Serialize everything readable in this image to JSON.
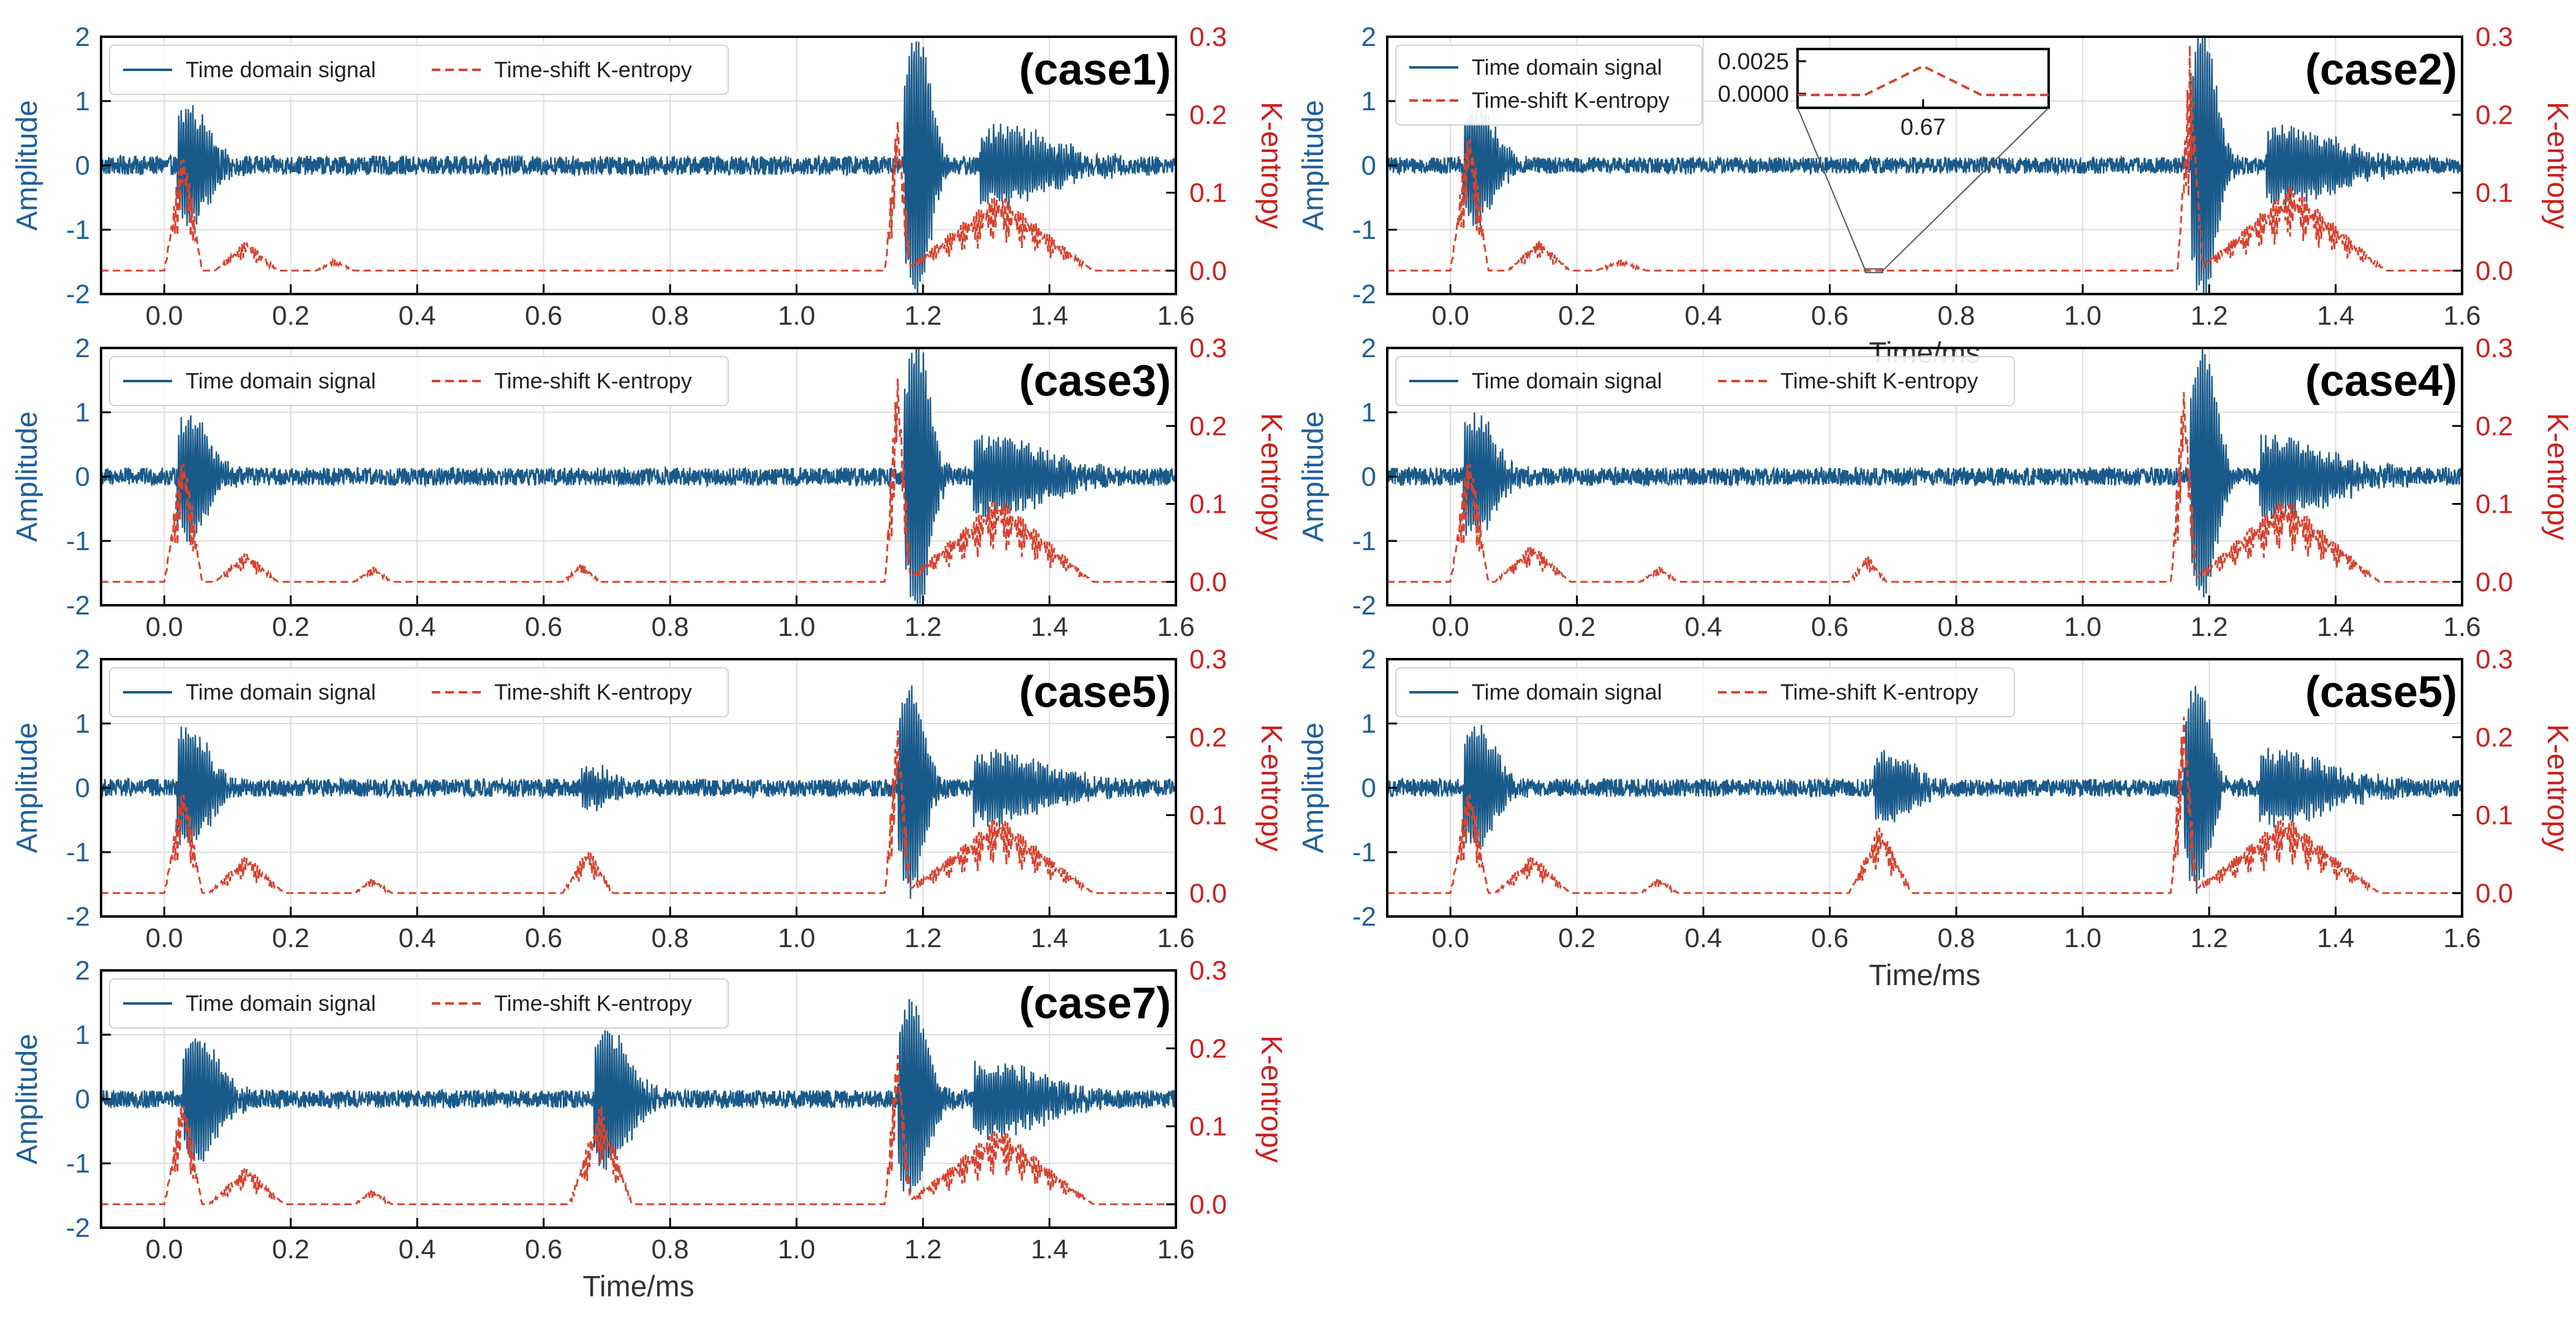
{
  "colors": {
    "signal": "#1a5a8a",
    "entropy": "#d9432f",
    "left_axis": "#1f5f99",
    "right_axis": "#cc1f1f",
    "grid": "#dddddd",
    "frame": "#000000"
  },
  "axis_labels": {
    "x": "Time/ms",
    "y_left": "Amplitude",
    "y_right": "K-entropy"
  },
  "legend": {
    "signal": "Time domain signal",
    "entropy": "Time-shift K-entropy"
  },
  "inset": {
    "y_ticks": [
      "0.0025",
      "0.0000"
    ],
    "x_tick": "0.67"
  },
  "chart_data": [
    {
      "id": "case1",
      "title": "(case1)",
      "type": "line",
      "xlim": [
        -0.1,
        1.6
      ],
      "ylim_left": [
        -2,
        2
      ],
      "ylim_right": [
        -0.03,
        0.3
      ],
      "x_ticks": [
        "0.0",
        "0.2",
        "0.4",
        "0.6",
        "0.8",
        "1.0",
        "1.2",
        "1.4",
        "1.6"
      ],
      "y_left_ticks": [
        "2",
        "1",
        "0",
        "-1",
        "-2"
      ],
      "y_right_ticks": [
        "0.3",
        "0.2",
        "0.1",
        "0.0"
      ],
      "noise": 0.15,
      "bursts": [
        {
          "t": 0.04,
          "amp": 0.85,
          "w": 0.03
        },
        {
          "t": 1.19,
          "amp": 2.1,
          "w": 0.02
        },
        {
          "t": 1.31,
          "amp": 0.55,
          "w": 0.09
        }
      ],
      "entropy_peaks": [
        {
          "t": 0.03,
          "h": 0.17,
          "w": 0.03
        },
        {
          "t": 0.13,
          "h": 0.04,
          "w": 0.05
        },
        {
          "t": 0.27,
          "h": 0.015,
          "w": 0.03
        },
        {
          "t": 1.16,
          "h": 0.22,
          "w": 0.02
        },
        {
          "t": 1.32,
          "h": 0.1,
          "w": 0.15
        }
      ],
      "inset": false,
      "xlabel": false
    },
    {
      "id": "case2",
      "title": "(case2)",
      "type": "line",
      "xlim": [
        -0.1,
        1.6
      ],
      "ylim_left": [
        -2,
        2
      ],
      "ylim_right": [
        -0.03,
        0.3
      ],
      "x_ticks": [
        "0.0",
        "0.2",
        "0.4",
        "0.6",
        "0.8",
        "1.0",
        "1.2",
        "1.4",
        "1.6"
      ],
      "y_left_ticks": [
        "2",
        "1",
        "0",
        "-1",
        "-2"
      ],
      "y_right_ticks": [
        "0.3",
        "0.2",
        "0.1",
        "0.0"
      ],
      "noise": 0.13,
      "bursts": [
        {
          "t": 0.04,
          "amp": 0.85,
          "w": 0.03
        },
        {
          "t": 1.19,
          "amp": 2.1,
          "w": 0.02
        },
        {
          "t": 1.31,
          "amp": 0.55,
          "w": 0.09
        }
      ],
      "entropy_peaks": [
        {
          "t": 0.03,
          "h": 0.2,
          "w": 0.03
        },
        {
          "t": 0.14,
          "h": 0.04,
          "w": 0.05
        },
        {
          "t": 0.27,
          "h": 0.015,
          "w": 0.04
        },
        {
          "t": 1.17,
          "h": 0.3,
          "w": 0.02
        },
        {
          "t": 1.33,
          "h": 0.11,
          "w": 0.15
        }
      ],
      "inset": true,
      "xlabel": true
    },
    {
      "id": "case3",
      "title": "(case3)",
      "type": "line",
      "xlim": [
        -0.1,
        1.6
      ],
      "ylim_left": [
        -2,
        2
      ],
      "ylim_right": [
        -0.03,
        0.3
      ],
      "x_ticks": [
        "0.0",
        "0.2",
        "0.4",
        "0.6",
        "0.8",
        "1.0",
        "1.2",
        "1.4",
        "1.6"
      ],
      "y_left_ticks": [
        "2",
        "1",
        "0",
        "-1",
        "-2"
      ],
      "y_right_ticks": [
        "0.3",
        "0.2",
        "0.1",
        "0.0"
      ],
      "noise": 0.14,
      "bursts": [
        {
          "t": 0.04,
          "amp": 0.9,
          "w": 0.03
        },
        {
          "t": 1.19,
          "amp": 2.1,
          "w": 0.02
        },
        {
          "t": 1.3,
          "amp": 0.55,
          "w": 0.09
        }
      ],
      "entropy_peaks": [
        {
          "t": 0.03,
          "h": 0.18,
          "w": 0.03
        },
        {
          "t": 0.13,
          "h": 0.04,
          "w": 0.05
        },
        {
          "t": 0.33,
          "h": 0.02,
          "w": 0.03
        },
        {
          "t": 0.66,
          "h": 0.025,
          "w": 0.03
        },
        {
          "t": 1.16,
          "h": 0.3,
          "w": 0.02
        },
        {
          "t": 1.32,
          "h": 0.11,
          "w": 0.15
        }
      ],
      "inset": false,
      "xlabel": false
    },
    {
      "id": "case4",
      "title": "(case4)",
      "type": "line",
      "xlim": [
        -0.1,
        1.6
      ],
      "ylim_left": [
        -2,
        2
      ],
      "ylim_right": [
        -0.03,
        0.3
      ],
      "x_ticks": [
        "0.0",
        "0.2",
        "0.4",
        "0.6",
        "0.8",
        "1.0",
        "1.2",
        "1.4",
        "1.6"
      ],
      "y_left_ticks": [
        "2",
        "1",
        "0",
        "-1",
        "-2"
      ],
      "y_right_ticks": [
        "0.3",
        "0.2",
        "0.1",
        "0.0"
      ],
      "noise": 0.14,
      "bursts": [
        {
          "t": 0.04,
          "amp": 0.9,
          "w": 0.03
        },
        {
          "t": 1.19,
          "amp": 2.0,
          "w": 0.02
        },
        {
          "t": 1.3,
          "amp": 0.55,
          "w": 0.09
        }
      ],
      "entropy_peaks": [
        {
          "t": 0.03,
          "h": 0.18,
          "w": 0.03
        },
        {
          "t": 0.13,
          "h": 0.05,
          "w": 0.06
        },
        {
          "t": 0.33,
          "h": 0.02,
          "w": 0.03
        },
        {
          "t": 0.66,
          "h": 0.035,
          "w": 0.03
        },
        {
          "t": 1.16,
          "h": 0.28,
          "w": 0.02
        },
        {
          "t": 1.32,
          "h": 0.11,
          "w": 0.15
        }
      ],
      "inset": false,
      "xlabel": false
    },
    {
      "id": "case5a",
      "title": "(case5)",
      "type": "line",
      "xlim": [
        -0.1,
        1.6
      ],
      "ylim_left": [
        -2,
        2
      ],
      "ylim_right": [
        -0.03,
        0.3
      ],
      "x_ticks": [
        "0.0",
        "0.2",
        "0.4",
        "0.6",
        "0.8",
        "1.0",
        "1.2",
        "1.4",
        "1.6"
      ],
      "y_left_ticks": [
        "2",
        "1",
        "0",
        "-1",
        "-2"
      ],
      "y_right_ticks": [
        "0.3",
        "0.2",
        "0.1",
        "0.0"
      ],
      "noise": 0.14,
      "bursts": [
        {
          "t": 0.04,
          "amp": 0.9,
          "w": 0.03
        },
        {
          "t": 0.68,
          "amp": 0.28,
          "w": 0.03
        },
        {
          "t": 1.18,
          "amp": 1.6,
          "w": 0.02
        },
        {
          "t": 1.3,
          "amp": 0.5,
          "w": 0.09
        }
      ],
      "entropy_peaks": [
        {
          "t": 0.03,
          "h": 0.15,
          "w": 0.03
        },
        {
          "t": 0.13,
          "h": 0.05,
          "w": 0.06
        },
        {
          "t": 0.33,
          "h": 0.02,
          "w": 0.03
        },
        {
          "t": 0.67,
          "h": 0.06,
          "w": 0.04
        },
        {
          "t": 1.16,
          "h": 0.24,
          "w": 0.02
        },
        {
          "t": 1.32,
          "h": 0.1,
          "w": 0.15
        }
      ],
      "inset": false,
      "xlabel": false
    },
    {
      "id": "case5b",
      "title": "(case5)",
      "type": "line",
      "xlim": [
        -0.1,
        1.6
      ],
      "ylim_left": [
        -2,
        2
      ],
      "ylim_right": [
        -0.03,
        0.3
      ],
      "x_ticks": [
        "0.0",
        "0.2",
        "0.4",
        "0.6",
        "0.8",
        "1.0",
        "1.2",
        "1.4",
        "1.6"
      ],
      "y_left_ticks": [
        "2",
        "1",
        "0",
        "-1",
        "-2"
      ],
      "y_right_ticks": [
        "0.3",
        "0.2",
        "0.1",
        "0.0"
      ],
      "noise": 0.14,
      "bursts": [
        {
          "t": 0.04,
          "amp": 0.9,
          "w": 0.03
        },
        {
          "t": 0.69,
          "amp": 0.5,
          "w": 0.04
        },
        {
          "t": 1.18,
          "amp": 1.6,
          "w": 0.02
        },
        {
          "t": 1.3,
          "amp": 0.5,
          "w": 0.09
        }
      ],
      "entropy_peaks": [
        {
          "t": 0.03,
          "h": 0.15,
          "w": 0.03
        },
        {
          "t": 0.13,
          "h": 0.05,
          "w": 0.06
        },
        {
          "t": 0.33,
          "h": 0.02,
          "w": 0.03
        },
        {
          "t": 0.68,
          "h": 0.09,
          "w": 0.05
        },
        {
          "t": 1.16,
          "h": 0.26,
          "w": 0.02
        },
        {
          "t": 1.32,
          "h": 0.1,
          "w": 0.15
        }
      ],
      "inset": false,
      "xlabel": true
    },
    {
      "id": "case7",
      "title": "(case7)",
      "type": "line",
      "xlim": [
        -0.1,
        1.6
      ],
      "ylim_left": [
        -2,
        2
      ],
      "ylim_right": [
        -0.03,
        0.3
      ],
      "x_ticks": [
        "0.0",
        "0.2",
        "0.4",
        "0.6",
        "0.8",
        "1.0",
        "1.2",
        "1.4",
        "1.6"
      ],
      "y_left_ticks": [
        "2",
        "1",
        "0",
        "-1",
        "-2"
      ],
      "y_right_ticks": [
        "0.3",
        "0.2",
        "0.1",
        "0.0"
      ],
      "noise": 0.14,
      "bursts": [
        {
          "t": 0.05,
          "amp": 0.95,
          "w": 0.035
        },
        {
          "t": 0.7,
          "amp": 1.0,
          "w": 0.035
        },
        {
          "t": 1.18,
          "amp": 1.5,
          "w": 0.025
        },
        {
          "t": 1.3,
          "amp": 0.5,
          "w": 0.09
        }
      ],
      "entropy_peaks": [
        {
          "t": 0.03,
          "h": 0.15,
          "w": 0.03
        },
        {
          "t": 0.13,
          "h": 0.05,
          "w": 0.06
        },
        {
          "t": 0.33,
          "h": 0.02,
          "w": 0.03
        },
        {
          "t": 0.69,
          "h": 0.13,
          "w": 0.05
        },
        {
          "t": 1.16,
          "h": 0.22,
          "w": 0.02
        },
        {
          "t": 1.32,
          "h": 0.1,
          "w": 0.15
        }
      ],
      "inset": false,
      "xlabel": true
    }
  ]
}
